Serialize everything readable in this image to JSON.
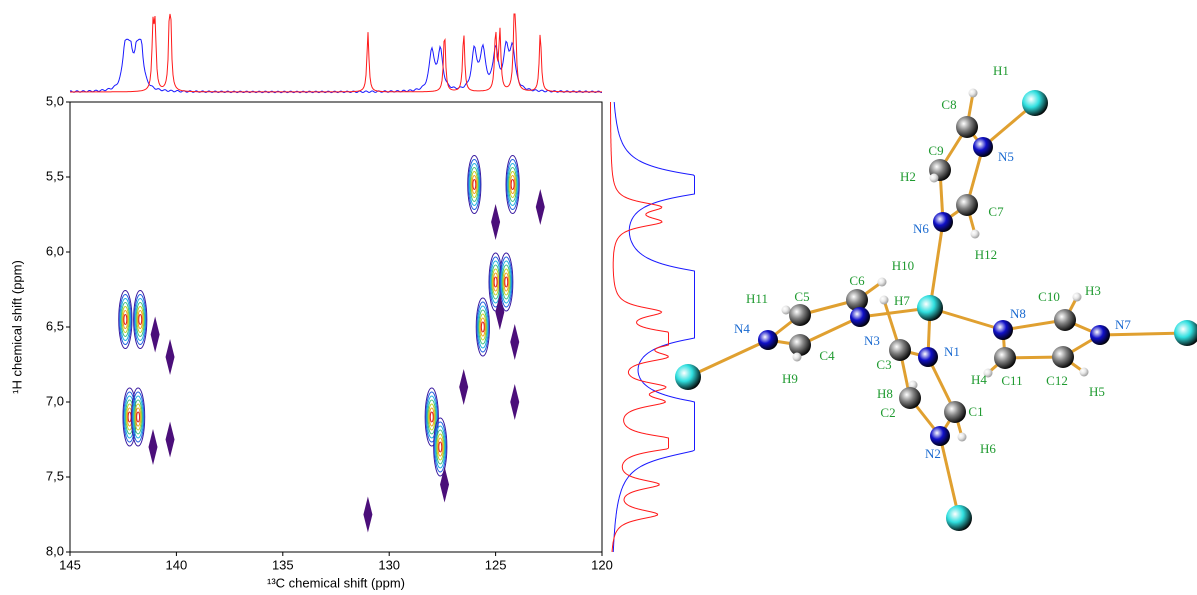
{
  "chart_data": {
    "type": "contour",
    "xlabel": "¹³C chemical shift (ppm)",
    "ylabel": "¹H chemical shift (ppm)",
    "xlim": [
      145,
      120
    ],
    "xticks": [
      145,
      140,
      135,
      130,
      125,
      120
    ],
    "ylim": [
      5,
      8
    ],
    "yticks": [
      {
        "value": 5,
        "label": "5,0"
      },
      {
        "value": 5.5,
        "label": "5,5"
      },
      {
        "value": 6,
        "label": "6,0"
      },
      {
        "value": 6.5,
        "label": "6,5"
      },
      {
        "value": 7,
        "label": "7,0"
      },
      {
        "value": 7.5,
        "label": "7,5"
      },
      {
        "value": 8,
        "label": "8,0"
      }
    ],
    "series": [
      {
        "colors": [
          "#3a1aa0",
          "#2060e0",
          "#20b0e0",
          "#40c080",
          "#c0d020",
          "#f0a020",
          "#e02020"
        ],
        "x": [
          142.4,
          141.7,
          142.2,
          141.8,
          126.0,
          124.2,
          125.0,
          124.5,
          125.6,
          128.0,
          127.6
        ],
        "values": [
          6.45,
          6.45,
          7.1,
          7.1,
          5.55,
          5.55,
          6.2,
          6.2,
          6.5,
          7.1,
          7.3
        ]
      },
      {
        "color": "#4b0f7a",
        "x": [
          141.0,
          140.3,
          141.1,
          140.3,
          125.0,
          122.9,
          124.8,
          124.1,
          124.1,
          126.5,
          127.4,
          131.0
        ],
        "values": [
          6.55,
          6.7,
          7.3,
          7.25,
          5.8,
          5.7,
          6.4,
          6.6,
          7.0,
          6.9,
          7.55,
          7.75
        ]
      }
    ]
  },
  "molecule": {
    "labels": [
      "H1",
      "C8",
      "N5",
      "C9",
      "H2",
      "C7",
      "N6",
      "H12",
      "H10",
      "C6",
      "H11",
      "C5",
      "H7",
      "N4",
      "N3",
      "C3",
      "N1",
      "C4",
      "H9",
      "H8",
      "C2",
      "C1",
      "N2",
      "H6",
      "N8",
      "C10",
      "H3",
      "N7",
      "C11",
      "H4",
      "C12",
      "H5"
    ]
  }
}
